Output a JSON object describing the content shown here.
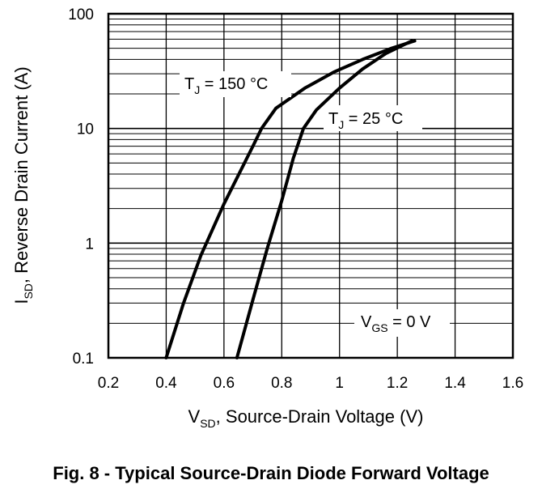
{
  "chart_data": {
    "type": "line",
    "title": "Fig. 8 - Typical Source-Drain Diode Forward Voltage",
    "xlabel": {
      "main": "V",
      "sub": "SD",
      "rest": ", Source-Drain Voltage (V)"
    },
    "ylabel": {
      "main": "I",
      "sub": "SD",
      "rest": ", Reverse Drain Current (A)"
    },
    "xlim": [
      0.2,
      1.6
    ],
    "ylim": [
      0.1,
      100
    ],
    "yscale": "log",
    "grid": true,
    "x_ticks": [
      {
        "value": 0.2,
        "label": "0.2"
      },
      {
        "value": 0.4,
        "label": "0.4"
      },
      {
        "value": 0.6,
        "label": "0.6"
      },
      {
        "value": 0.8,
        "label": "0.8"
      },
      {
        "value": 1.0,
        "label": "1"
      },
      {
        "value": 1.2,
        "label": "1.2"
      },
      {
        "value": 1.4,
        "label": "1.4"
      },
      {
        "value": 1.6,
        "label": "1.6"
      }
    ],
    "y_ticks": [
      {
        "value": 0.1,
        "label": "0.1"
      },
      {
        "value": 1,
        "label": "1"
      },
      {
        "value": 10,
        "label": "10"
      },
      {
        "value": 100,
        "label": "100"
      }
    ],
    "series": [
      {
        "name": "TJ = 150 °C",
        "label": {
          "main": "T",
          "sub": "J",
          "rest": " = 150 °C"
        },
        "x": [
          0.4,
          0.46,
          0.52,
          0.6,
          0.7,
          0.73,
          0.78,
          0.88,
          0.98,
          1.08,
          1.18,
          1.26
        ],
        "y": [
          0.1,
          0.3,
          0.78,
          2.2,
          7.0,
          10.0,
          15.0,
          22.5,
          31.0,
          40.0,
          50.0,
          58.0
        ]
      },
      {
        "name": "TJ = 25 °C",
        "label": {
          "main": "T",
          "sub": "J",
          "rest": " = 25 °C"
        },
        "x": [
          0.645,
          0.7,
          0.75,
          0.8,
          0.84,
          0.875,
          0.92,
          1.0,
          1.08,
          1.16,
          1.25
        ],
        "y": [
          0.1,
          0.32,
          0.9,
          2.35,
          5.5,
          10.0,
          14.5,
          22.5,
          33.0,
          45.0,
          58.0
        ]
      }
    ],
    "annotations": [
      {
        "id": "vgs",
        "main": "V",
        "sub": "GS",
        "rest": " = 0 V"
      }
    ]
  }
}
